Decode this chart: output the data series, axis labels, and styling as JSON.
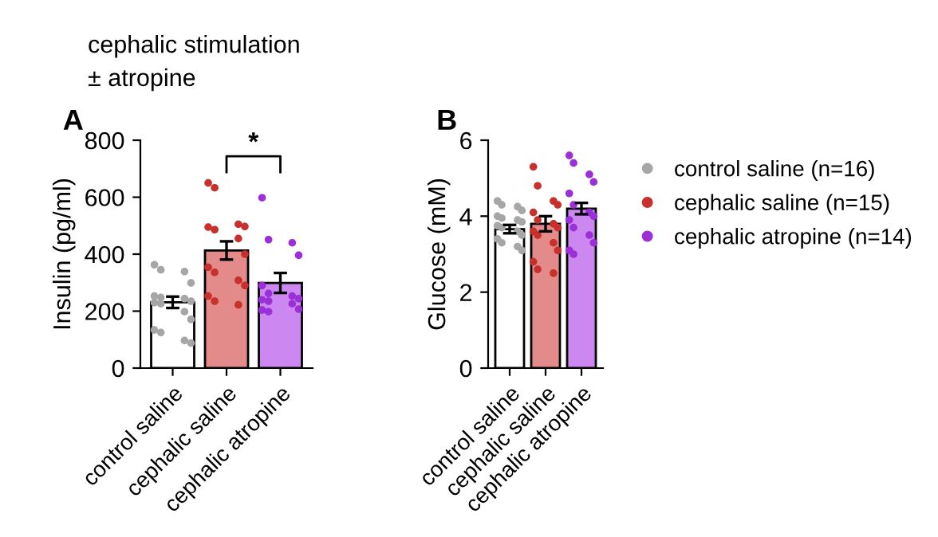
{
  "chart_data": [
    {
      "type": "bar",
      "title": "cephalic stimulation\n± atropine",
      "ylabel": "Insulin (pg/ml)",
      "categories": [
        "control saline",
        "cephalic saline",
        "cephalic atropine"
      ],
      "ylim": [
        0,
        800
      ],
      "yticks": [
        0,
        200,
        400,
        600,
        800
      ],
      "annotations": [
        "A",
        "*"
      ],
      "series": [
        {
          "colors": [
            "#ffffff",
            "#e38a8a",
            "#cc88f0"
          ],
          "values": [
            231,
            413,
            299
          ],
          "errors": [
            20,
            32,
            35
          ]
        },
        {
          "type": "scatter",
          "color": "#a6a6a6",
          "x": [
            "control saline",
            "control saline",
            "control saline",
            "control saline",
            "control saline",
            "control saline",
            "control saline",
            "control saline",
            "control saline",
            "control saline",
            "control saline",
            "control saline",
            "control saline",
            "control saline",
            "control saline",
            "control saline"
          ],
          "values": [
            363,
            345,
            339,
            299,
            253,
            248,
            244,
            235,
            230,
            226,
            198,
            171,
            134,
            125,
            97,
            88
          ]
        },
        {
          "type": "scatter",
          "color": "#c8302c",
          "x": [
            "cephalic saline",
            "cephalic saline",
            "cephalic saline",
            "cephalic saline",
            "cephalic saline",
            "cephalic saline",
            "cephalic saline",
            "cephalic saline",
            "cephalic saline",
            "cephalic saline",
            "cephalic saline",
            "cephalic saline",
            "cephalic saline",
            "cephalic saline",
            "cephalic saline"
          ],
          "values": [
            650,
            633,
            505,
            497,
            495,
            486,
            455,
            400,
            354,
            336,
            308,
            290,
            253,
            235,
            222
          ]
        },
        {
          "type": "scatter",
          "color": "#9b30d9",
          "x": [
            "cephalic atropine",
            "cephalic atropine",
            "cephalic atropine",
            "cephalic atropine",
            "cephalic atropine",
            "cephalic atropine",
            "cephalic atropine",
            "cephalic atropine",
            "cephalic atropine",
            "cephalic atropine",
            "cephalic atropine",
            "cephalic atropine",
            "cephalic atropine",
            "cephalic atropine"
          ],
          "values": [
            598,
            451,
            440,
            396,
            290,
            262,
            253,
            244,
            240,
            235,
            226,
            207,
            204,
            198
          ]
        }
      ]
    },
    {
      "type": "bar",
      "ylabel": "Glucose (mM)",
      "categories": [
        "control saline",
        "cephalic saline",
        "cephalic atropine"
      ],
      "ylim": [
        0,
        6
      ],
      "yticks": [
        0,
        2,
        4,
        6
      ],
      "annotations": [
        "B"
      ],
      "legend": "right",
      "series": [
        {
          "colors": [
            "#ffffff",
            "#e38a8a",
            "#cc88f0"
          ],
          "values": [
            3.66,
            3.8,
            4.2
          ],
          "errors": [
            0.11,
            0.2,
            0.15
          ]
        },
        {
          "type": "scatter",
          "name": "control saline (n=16)",
          "color": "#a6a6a6",
          "x": [
            "control saline",
            "control saline",
            "control saline",
            "control saline",
            "control saline",
            "control saline",
            "control saline",
            "control saline",
            "control saline",
            "control saline",
            "control saline",
            "control saline",
            "control saline",
            "control saline",
            "control saline",
            "control saline"
          ],
          "values": [
            4.4,
            4.3,
            4.25,
            4.15,
            4.0,
            3.95,
            3.9,
            3.85,
            3.75,
            3.7,
            3.6,
            3.5,
            3.4,
            3.3,
            3.2,
            3.1
          ]
        },
        {
          "type": "scatter",
          "name": "cephalic saline (n=15)",
          "color": "#c8302c",
          "x": [
            "cephalic saline",
            "cephalic saline",
            "cephalic saline",
            "cephalic saline",
            "cephalic saline",
            "cephalic saline",
            "cephalic saline",
            "cephalic saline",
            "cephalic saline",
            "cephalic saline",
            "cephalic saline",
            "cephalic saline",
            "cephalic saline",
            "cephalic saline",
            "cephalic saline"
          ],
          "values": [
            5.3,
            4.8,
            4.4,
            4.3,
            4.1,
            3.9,
            3.8,
            3.7,
            3.6,
            3.5,
            3.3,
            3.1,
            2.8,
            2.6,
            2.5
          ]
        },
        {
          "type": "scatter",
          "name": "cephalic atropine (n=14)",
          "color": "#9b30d9",
          "x": [
            "cephalic atropine",
            "cephalic atropine",
            "cephalic atropine",
            "cephalic atropine",
            "cephalic atropine",
            "cephalic atropine",
            "cephalic atropine",
            "cephalic atropine",
            "cephalic atropine",
            "cephalic atropine",
            "cephalic atropine",
            "cephalic atropine",
            "cephalic atropine",
            "cephalic atropine"
          ],
          "values": [
            5.6,
            5.4,
            5.1,
            4.9,
            4.6,
            4.3,
            4.1,
            4.0,
            3.9,
            3.7,
            3.5,
            3.3,
            3.1,
            3.0
          ]
        }
      ]
    }
  ]
}
